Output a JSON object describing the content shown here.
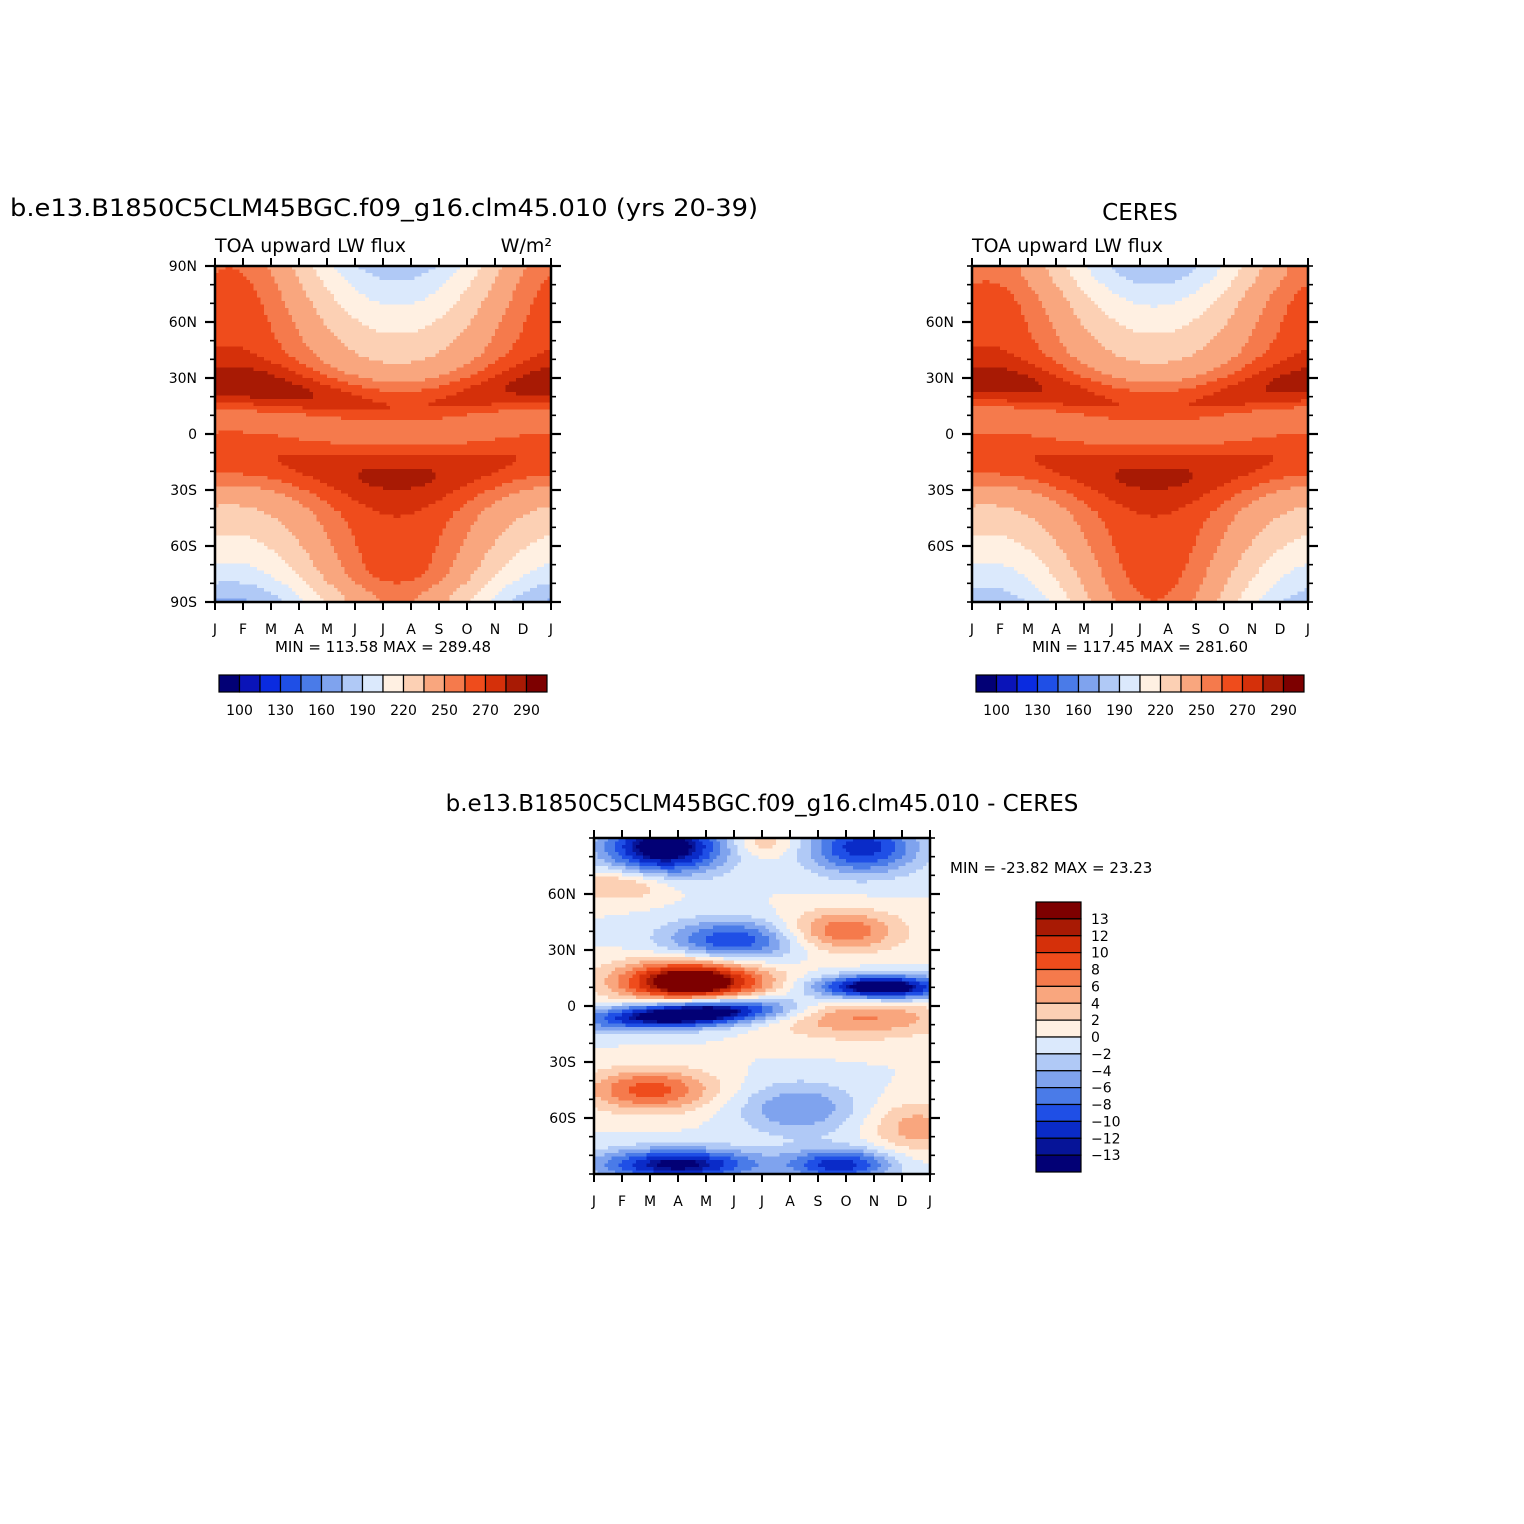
{
  "palettes": {
    "full": [
      "#020075",
      "#0a14b8",
      "#0a2be0",
      "#1f4fe6",
      "#4a7be8",
      "#7fa3ee",
      "#b0c9f6",
      "#dbe9fc",
      "#fff0e2",
      "#fcd0b4",
      "#f9a67e",
      "#f57a4c",
      "#ef4c1c",
      "#d5300a",
      "#a81a04",
      "#7d0000"
    ],
    "diff": [
      "#020075",
      "#061498",
      "#0a2bc8",
      "#1f4fe6",
      "#4a7be8",
      "#7fa3ee",
      "#b0c9f6",
      "#dbe9fc",
      "#fff0e2",
      "#fcd0b4",
      "#f9a67e",
      "#f57a4c",
      "#ef4c1c",
      "#d5300a",
      "#a81a04",
      "#7d0000"
    ]
  },
  "chart_data": [
    {
      "type": "heatmap",
      "id": "model",
      "title": "b.e13.B1850C5CLM45BGC.f09_g16.clm45.010 (yrs 20-39)",
      "left_label": "TOA upward LW flux",
      "right_label": "W/m²",
      "x_categories": [
        "J",
        "F",
        "M",
        "A",
        "M",
        "J",
        "J",
        "A",
        "S",
        "O",
        "N",
        "D",
        "J"
      ],
      "y_ticks": [
        "90N",
        "60N",
        "30N",
        "0",
        "30S",
        "60S",
        "90S"
      ],
      "ylim": [
        -90,
        90
      ],
      "stats": "MIN = 113.58 MAX = 289.48",
      "min": 113.58,
      "max": 289.48,
      "colorbar_labels": [
        "100",
        "130",
        "160",
        "190",
        "220",
        "250",
        "270",
        "290"
      ],
      "colorbar_levels": [
        100,
        115,
        130,
        145,
        160,
        175,
        190,
        205,
        220,
        235,
        250,
        260,
        270,
        280,
        290
      ]
    },
    {
      "type": "heatmap",
      "id": "obs",
      "title": "CERES",
      "left_label": "TOA upward LW flux",
      "x_categories": [
        "J",
        "F",
        "M",
        "A",
        "M",
        "J",
        "J",
        "A",
        "S",
        "O",
        "N",
        "D",
        "J"
      ],
      "y_ticks": [
        "60N",
        "30N",
        "0",
        "30S",
        "60S"
      ],
      "ylim": [
        -90,
        90
      ],
      "stats": "MIN = 117.45 MAX = 281.60",
      "min": 117.45,
      "max": 281.6,
      "colorbar_labels": [
        "100",
        "130",
        "160",
        "190",
        "220",
        "250",
        "270",
        "290"
      ],
      "colorbar_levels": [
        100,
        115,
        130,
        145,
        160,
        175,
        190,
        205,
        220,
        235,
        250,
        260,
        270,
        280,
        290
      ]
    },
    {
      "type": "heatmap",
      "id": "diff",
      "title": "b.e13.B1850C5CLM45BGC.f09_g16.clm45.010 - CERES",
      "x_categories": [
        "J",
        "F",
        "M",
        "A",
        "M",
        "J",
        "J",
        "A",
        "S",
        "O",
        "N",
        "D",
        "J"
      ],
      "y_ticks": [
        "60N",
        "30N",
        "0",
        "30S",
        "60S"
      ],
      "ylim": [
        -90,
        90
      ],
      "stats": "MIN = -23.82 MAX = 23.23",
      "min": -23.82,
      "max": 23.23,
      "colorbar_labels": [
        "13",
        "12",
        "10",
        "8",
        "6",
        "4",
        "2",
        "0",
        "-2",
        "-4",
        "-6",
        "-8",
        "-10",
        "-12",
        "-13"
      ],
      "colorbar_levels": [
        -13,
        -12,
        -10,
        -8,
        -6,
        -4,
        -2,
        0,
        2,
        4,
        6,
        8,
        10,
        12,
        13
      ]
    }
  ]
}
